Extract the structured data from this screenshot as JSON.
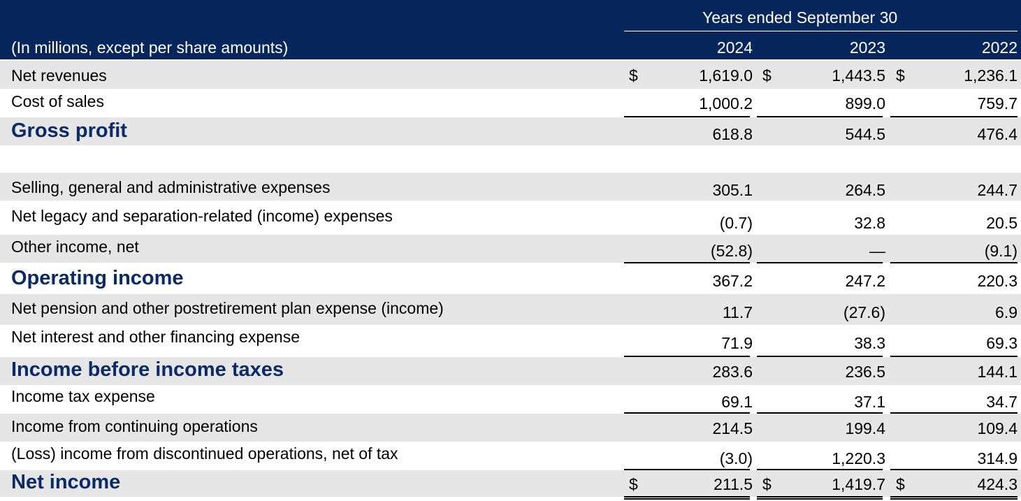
{
  "header": {
    "period_label": "Years ended September 30",
    "units_label": "(In millions, except per share amounts)",
    "years": [
      "2024",
      "2023",
      "2022"
    ]
  },
  "rows": [
    {
      "label": "Net revenues",
      "values": [
        "1,619.0",
        "1,443.5",
        "1,236.1"
      ],
      "dollar": true
    },
    {
      "label": "Cost of sales",
      "values": [
        "1,000.2",
        "899.0",
        "759.7"
      ]
    },
    {
      "label": "Gross profit",
      "values": [
        "618.8",
        "544.5",
        "476.4"
      ]
    },
    {
      "label": "Selling, general and administrative expenses",
      "values": [
        "305.1",
        "264.5",
        "244.7"
      ]
    },
    {
      "label": "Net legacy and separation-related (income) expenses",
      "values": [
        "(0.7)",
        "32.8",
        "20.5"
      ]
    },
    {
      "label": "Other income, net",
      "values": [
        "(52.8)",
        "—",
        "(9.1)"
      ]
    },
    {
      "label": "Operating income",
      "values": [
        "367.2",
        "247.2",
        "220.3"
      ]
    },
    {
      "label": "Net pension and other postretirement plan expense (income)",
      "values": [
        "11.7",
        "(27.6)",
        "6.9"
      ]
    },
    {
      "label": "Net interest and other financing expense",
      "values": [
        "71.9",
        "38.3",
        "69.3"
      ]
    },
    {
      "label": "Income before income taxes",
      "values": [
        "283.6",
        "236.5",
        "144.1"
      ]
    },
    {
      "label": "Income tax expense",
      "values": [
        "69.1",
        "37.1",
        "34.7"
      ]
    },
    {
      "label": "Income from continuing operations",
      "values": [
        "214.5",
        "199.4",
        "109.4"
      ]
    },
    {
      "label": "(Loss) income from discontinued operations, net of tax",
      "values": [
        "(3.0)",
        "1,220.3",
        "314.9"
      ]
    },
    {
      "label": "Net income",
      "values": [
        "211.5",
        "1,419.7",
        "424.3"
      ],
      "dollar": true
    }
  ],
  "currency_symbol": "$",
  "colors": {
    "header_bg": "#06265c",
    "row_shade": "#e6e6e6",
    "bold_label": "#0b2a6a"
  }
}
